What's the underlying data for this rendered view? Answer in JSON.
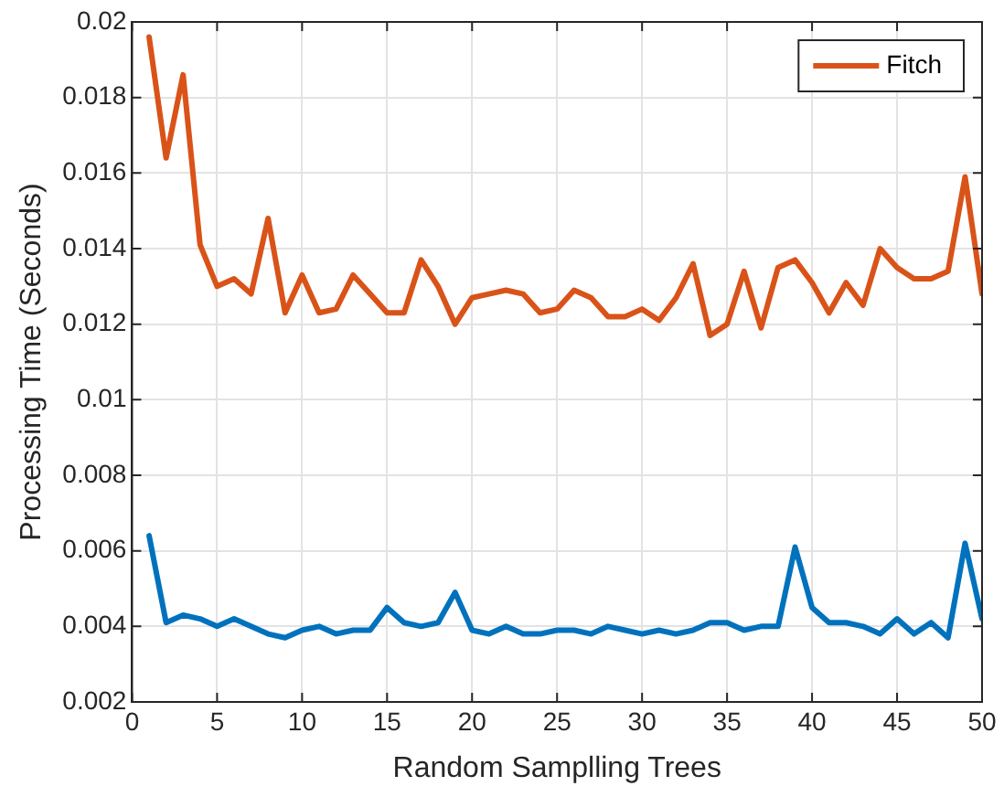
{
  "chart_data": {
    "type": "line",
    "xlabel": "Random Samplling Trees",
    "ylabel": "Processing Time (Seconds)",
    "x": [
      1,
      2,
      3,
      4,
      5,
      6,
      7,
      8,
      9,
      10,
      11,
      12,
      13,
      14,
      15,
      16,
      17,
      18,
      19,
      20,
      21,
      22,
      23,
      24,
      25,
      26,
      27,
      28,
      29,
      30,
      31,
      32,
      33,
      34,
      35,
      36,
      37,
      38,
      39,
      40,
      41,
      42,
      43,
      44,
      45,
      46,
      47,
      48,
      49,
      50
    ],
    "series": [
      {
        "color": "#0072bd",
        "values": [
          0.0064,
          0.0041,
          0.0043,
          0.0042,
          0.004,
          0.0042,
          0.004,
          0.0038,
          0.0037,
          0.0039,
          0.004,
          0.0038,
          0.0039,
          0.0039,
          0.0045,
          0.0041,
          0.004,
          0.0041,
          0.0049,
          0.0039,
          0.0038,
          0.004,
          0.0038,
          0.0038,
          0.0039,
          0.0039,
          0.0038,
          0.004,
          0.0039,
          0.0038,
          0.0039,
          0.0038,
          0.0039,
          0.0041,
          0.0041,
          0.0039,
          0.004,
          0.004,
          0.0061,
          0.0045,
          0.0041,
          0.0041,
          0.004,
          0.0038,
          0.0042,
          0.0038,
          0.0041,
          0.0037,
          0.0062,
          0.0042
        ]
      },
      {
        "name": "Fitch",
        "color": "#d95319",
        "values": [
          0.0196,
          0.0164,
          0.0186,
          0.0141,
          0.013,
          0.0132,
          0.0128,
          0.0148,
          0.0123,
          0.0133,
          0.0123,
          0.0124,
          0.0133,
          0.0128,
          0.0123,
          0.0123,
          0.0137,
          0.013,
          0.012,
          0.0127,
          0.0128,
          0.0129,
          0.0128,
          0.0123,
          0.0124,
          0.0129,
          0.0127,
          0.0122,
          0.0122,
          0.0124,
          0.0121,
          0.0127,
          0.0136,
          0.0117,
          0.012,
          0.0134,
          0.0119,
          0.0135,
          0.0137,
          0.0131,
          0.0123,
          0.0131,
          0.0125,
          0.014,
          0.0135,
          0.0132,
          0.0132,
          0.0134,
          0.0159,
          0.0128
        ]
      }
    ],
    "xlim": [
      0,
      50
    ],
    "xticks": [
      0,
      5,
      10,
      15,
      20,
      25,
      30,
      35,
      40,
      45,
      50
    ],
    "ylim": [
      0.002,
      0.02
    ],
    "yticks": [
      0.002,
      0.004,
      0.006,
      0.008,
      0.01,
      0.012,
      0.014,
      0.016,
      0.018,
      0.02
    ],
    "grid": true,
    "legend": "top right",
    "marker": "none",
    "line_style": "solid"
  }
}
